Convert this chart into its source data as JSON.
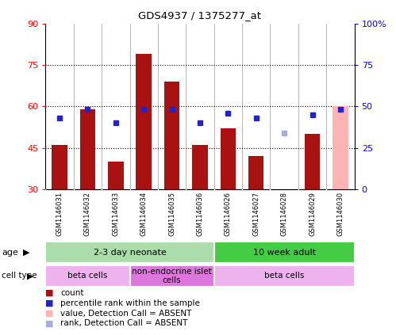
{
  "title": "GDS4937 / 1375277_at",
  "samples": [
    "GSM1146031",
    "GSM1146032",
    "GSM1146033",
    "GSM1146034",
    "GSM1146035",
    "GSM1146036",
    "GSM1146026",
    "GSM1146027",
    "GSM1146028",
    "GSM1146029",
    "GSM1146030"
  ],
  "count_values": [
    46,
    59,
    40,
    79,
    69,
    46,
    52,
    42,
    30,
    50,
    60
  ],
  "rank_values": [
    43,
    48,
    40,
    48,
    48,
    40,
    46,
    43,
    34,
    45,
    48
  ],
  "count_absent": [
    false,
    false,
    false,
    false,
    false,
    false,
    false,
    false,
    false,
    false,
    true
  ],
  "rank_absent": [
    false,
    false,
    false,
    false,
    false,
    false,
    false,
    false,
    true,
    false,
    false
  ],
  "ylim_left": [
    30,
    90
  ],
  "ylim_right": [
    0,
    100
  ],
  "yticks_left": [
    30,
    45,
    60,
    75,
    90
  ],
  "yticks_right": [
    0,
    25,
    50,
    75,
    100
  ],
  "ytick_labels_right": [
    "0",
    "25",
    "50",
    "75",
    "100%"
  ],
  "bar_color": "#aa1111",
  "bar_absent_color": "#ffb3b3",
  "rank_color": "#2222cc",
  "rank_absent_color": "#aaaadd",
  "age_groups": [
    {
      "label": "2-3 day neonate",
      "start": 0,
      "end": 5,
      "color": "#aaddaa"
    },
    {
      "label": "10 week adult",
      "start": 6,
      "end": 10,
      "color": "#44cc44"
    }
  ],
  "cell_type_groups": [
    {
      "label": "beta cells",
      "start": 0,
      "end": 2,
      "color": "#eeb3ee"
    },
    {
      "label": "non-endocrine islet\ncells",
      "start": 3,
      "end": 5,
      "color": "#dd77dd"
    },
    {
      "label": "beta cells",
      "start": 6,
      "end": 10,
      "color": "#eeb3ee"
    }
  ],
  "legend_items": [
    {
      "label": "count",
      "color": "#aa1111"
    },
    {
      "label": "percentile rank within the sample",
      "color": "#2222cc"
    },
    {
      "label": "value, Detection Call = ABSENT",
      "color": "#ffb3b3"
    },
    {
      "label": "rank, Detection Call = ABSENT",
      "color": "#aaaadd"
    }
  ],
  "background_color": "#ffffff",
  "plot_bg_color": "#ffffff",
  "label_bg_color": "#cccccc"
}
